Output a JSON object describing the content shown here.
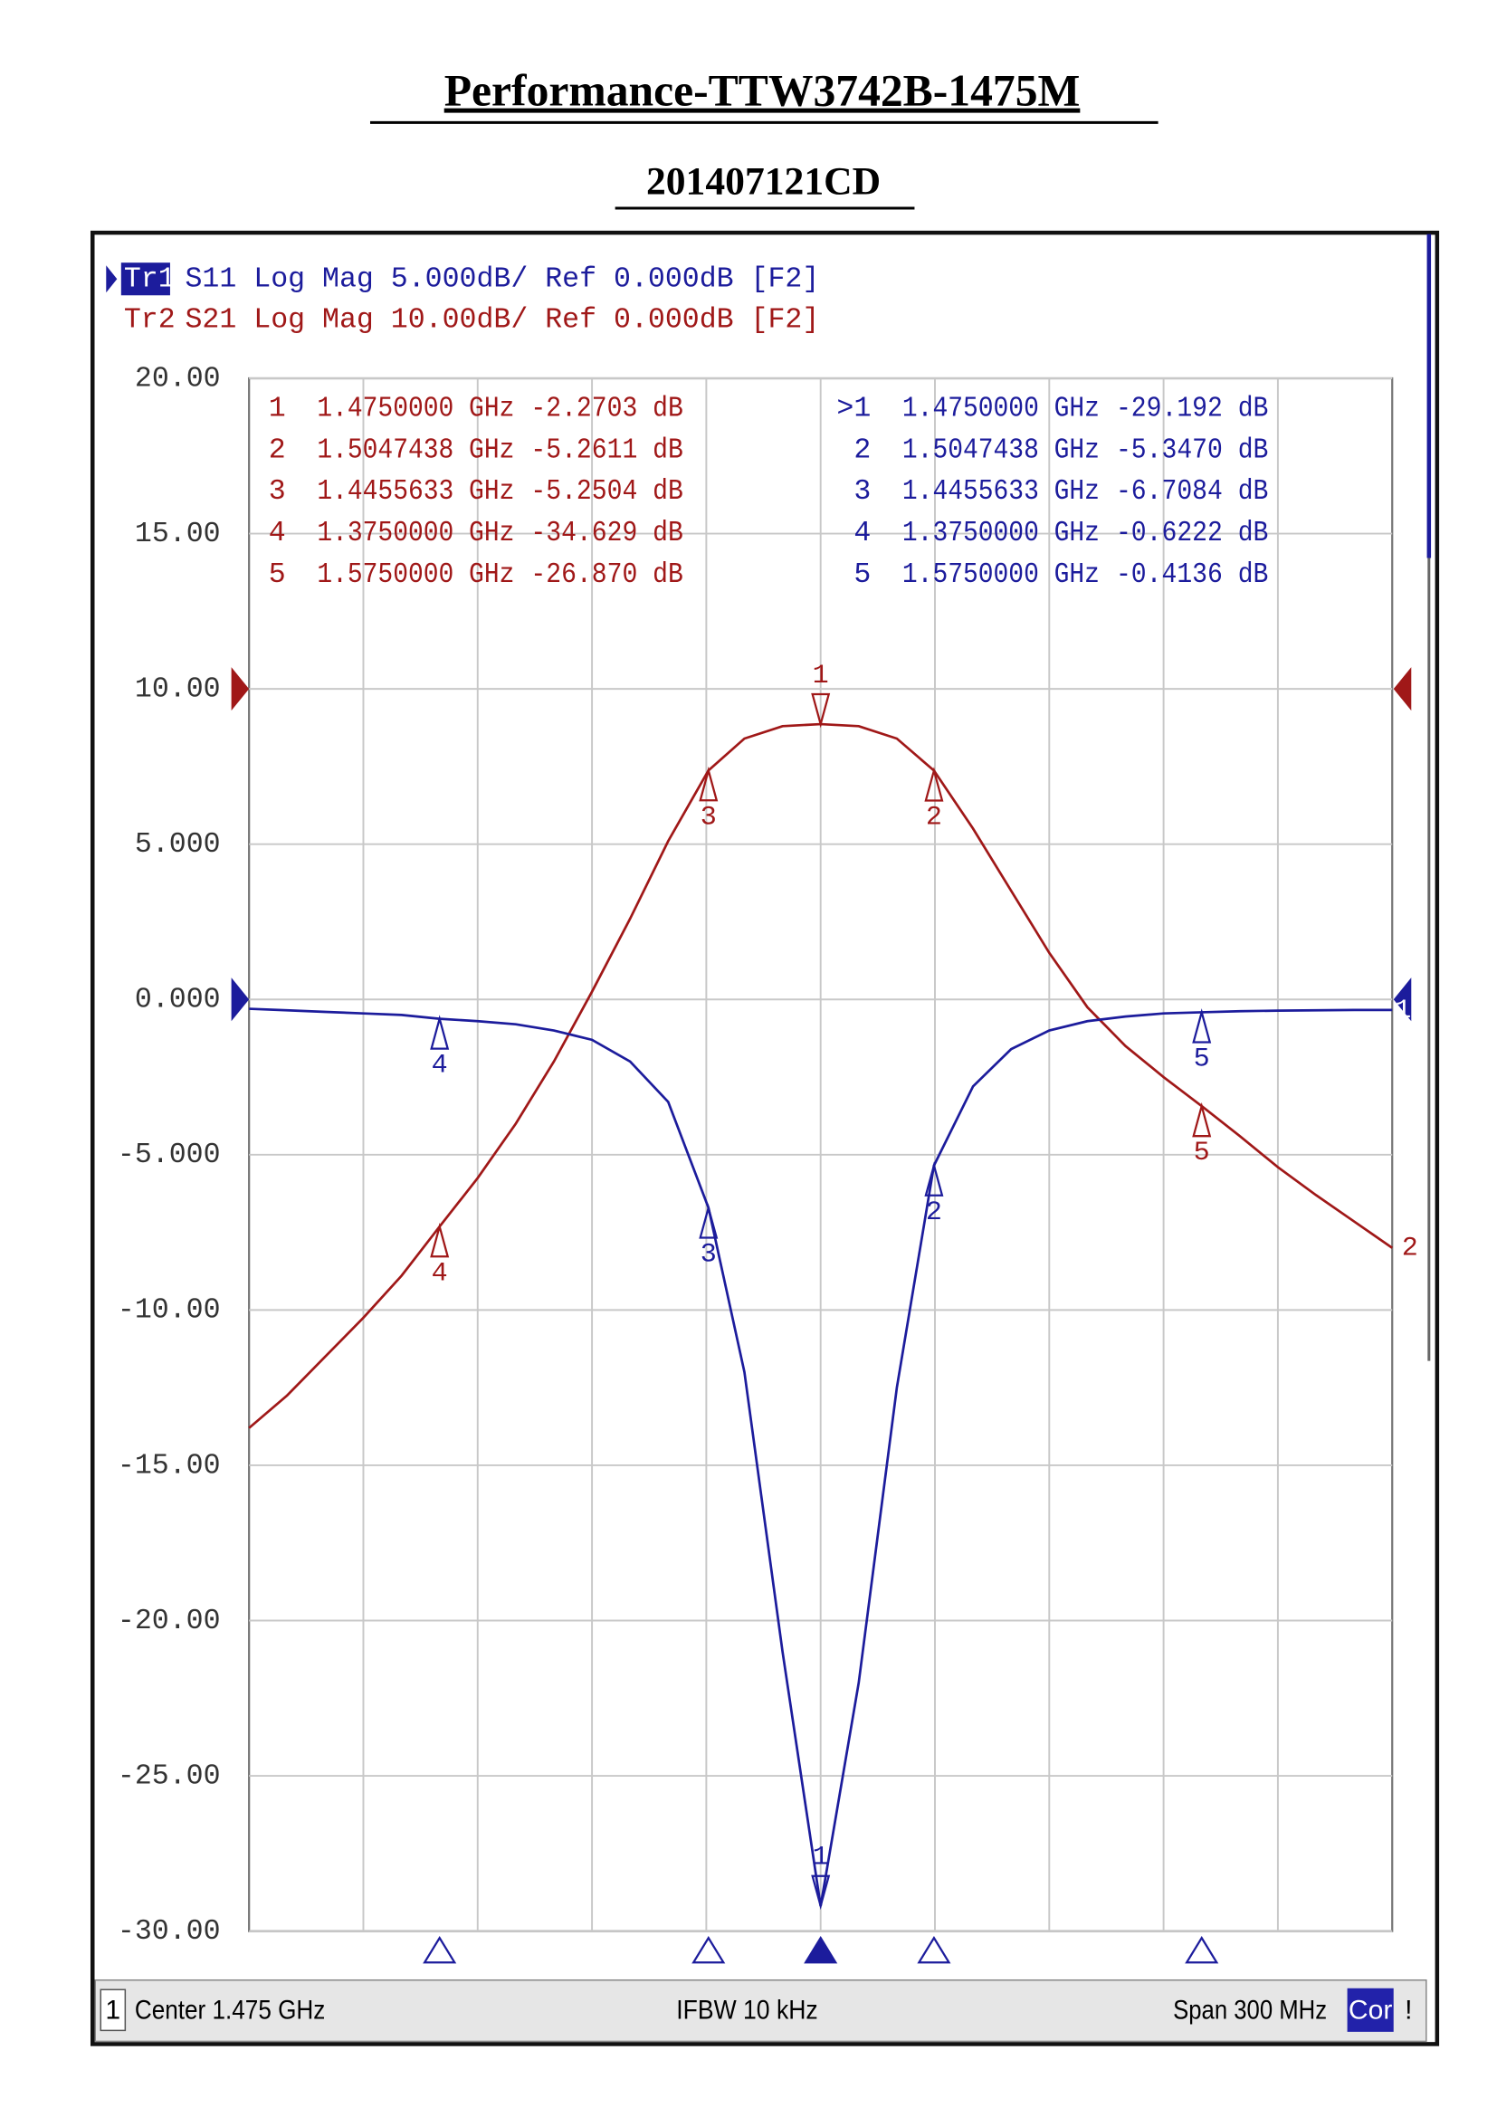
{
  "chart_data": {
    "type": "line",
    "title": "Performance-TTW3742B-1475M",
    "subtitle": "201407121CD",
    "trace_headers": [
      {
        "id": "Tr1",
        "text": "S11 Log Mag 5.000dB/ Ref 0.000dB [F2]"
      },
      {
        "id": "Tr2",
        "text": "S21 Log Mag 10.00dB/ Ref 0.000dB [F2]"
      }
    ],
    "status_bar": {
      "channel": "1",
      "center": "Center 1.475 GHz",
      "ifbw": "IFBW 10 kHz",
      "span": "Span 300 MHz",
      "correction": "Cor",
      "alert": "!"
    },
    "grid": true,
    "xlim": [
      1.325,
      1.625
    ],
    "ylim": [
      -30,
      20
    ],
    "y2lim": [
      -80,
      20
    ],
    "yticks": [
      {
        "value": 20,
        "label": "20.00"
      },
      {
        "value": 15,
        "label": "15.00"
      },
      {
        "value": 10,
        "label": "10.00"
      },
      {
        "value": 5,
        "label": "5.000"
      },
      {
        "value": 0,
        "label": "0.000"
      },
      {
        "value": -5,
        "label": "-5.000"
      },
      {
        "value": -10,
        "label": "-10.00"
      },
      {
        "value": -15,
        "label": "-15.00"
      },
      {
        "value": -20,
        "label": "-20.00"
      },
      {
        "value": -25,
        "label": "-25.00"
      },
      {
        "value": -30,
        "label": "-30.00"
      }
    ],
    "x": [
      1.325,
      1.335,
      1.345,
      1.355,
      1.365,
      1.375,
      1.385,
      1.395,
      1.405,
      1.415,
      1.425,
      1.435,
      1.4455633,
      1.455,
      1.465,
      1.475,
      1.485,
      1.495,
      1.5047438,
      1.515,
      1.525,
      1.535,
      1.545,
      1.555,
      1.565,
      1.575,
      1.585,
      1.595,
      1.605,
      1.615,
      1.625
    ],
    "series": [
      {
        "name": "S11",
        "color": "#1c1c9c",
        "trace_label": "1",
        "values": [
          -0.3,
          -0.35,
          -0.4,
          -0.45,
          -0.5,
          -0.6222,
          -0.7,
          -0.8,
          -1.0,
          -1.3,
          -2.0,
          -3.3,
          -6.7084,
          -12,
          -21,
          -29.192,
          -22,
          -12.5,
          -5.347,
          -2.8,
          -1.6,
          -1.0,
          -0.7,
          -0.55,
          -0.45,
          -0.4136,
          -0.38,
          -0.36,
          -0.35,
          -0.34,
          -0.34
        ],
        "markers": {
          "labels": [
            "1",
            "2",
            "3",
            "4",
            "5"
          ],
          "readout_ids": [
            ">1",
            "2",
            "3",
            "4",
            "5"
          ],
          "x": [
            1.475,
            1.5047438,
            1.4455633,
            1.375,
            1.575
          ],
          "x_labels": [
            "1.4750000 GHz",
            "1.5047438 GHz",
            "1.4455633 GHz",
            "1.3750000 GHz",
            "1.5750000 GHz"
          ],
          "values": [
            -29.192,
            -5.347,
            -6.7084,
            -0.6222,
            -0.4136
          ],
          "value_labels": [
            "-29.192 dB",
            "-5.3470 dB",
            "-6.7084 dB",
            "-0.6222 dB",
            "-0.4136 dB"
          ]
        }
      },
      {
        "name": "S21",
        "color": "#a01818",
        "axis": "y2",
        "trace_label": "2",
        "values": [
          -47.6,
          -45.5,
          -43,
          -40.5,
          -37.8,
          -34.629,
          -31.5,
          -28,
          -24,
          -19.5,
          -14.8,
          -9.8,
          -5.2504,
          -3.2,
          -2.4,
          -2.2703,
          -2.4,
          -3.2,
          -5.2611,
          -9,
          -13,
          -17,
          -20.5,
          -23,
          -25,
          -26.87,
          -28.8,
          -30.8,
          -32.6,
          -34.3,
          -36
        ],
        "markers": {
          "labels": [
            "1",
            "2",
            "3",
            "4",
            "5"
          ],
          "readout_ids": [
            "1",
            "2",
            "3",
            "4",
            "5"
          ],
          "x": [
            1.475,
            1.5047438,
            1.4455633,
            1.375,
            1.575
          ],
          "x_labels": [
            "1.4750000 GHz",
            "1.5047438 GHz",
            "1.4455633 GHz",
            "1.3750000 GHz",
            "1.5750000 GHz"
          ],
          "values": [
            -2.2703,
            -5.2611,
            -5.2504,
            -34.629,
            -26.87
          ],
          "value_labels": [
            "-2.2703 dB",
            "-5.2611 dB",
            "-5.2504 dB",
            "-34.629 dB",
            "-26.870 dB"
          ]
        }
      }
    ]
  }
}
